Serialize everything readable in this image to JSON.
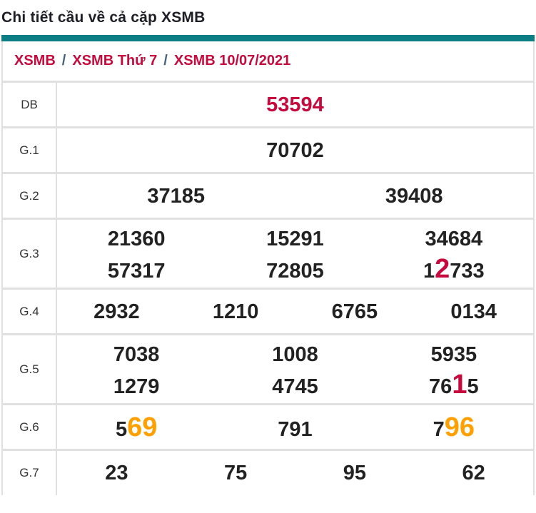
{
  "page": {
    "title": "Chi tiết cầu về cả cặp XSMB"
  },
  "breadcrumb": {
    "items": [
      "XSMB",
      "XSMB Thứ 7",
      "XSMB 10/07/2021"
    ],
    "separator": "/"
  },
  "colors": {
    "accent": "#0d7e84",
    "crimson": "#c70a3d",
    "orange": "#ffa000",
    "dark": "#222222",
    "border": "#e0e0e0",
    "breadcrumb_separator": "#44627e"
  },
  "table": {
    "rows": [
      {
        "label": "DB",
        "lines": [
          [
            {
              "segments": [
                {
                  "text": "53594",
                  "style": "red"
                }
              ]
            }
          ]
        ]
      },
      {
        "label": "G.1",
        "lines": [
          [
            {
              "segments": [
                {
                  "text": "70702"
                }
              ]
            }
          ]
        ]
      },
      {
        "label": "G.2",
        "lines": [
          [
            {
              "segments": [
                {
                  "text": "37185"
                }
              ]
            },
            {
              "segments": [
                {
                  "text": "39408"
                }
              ]
            }
          ]
        ]
      },
      {
        "label": "G.3",
        "lines": [
          [
            {
              "segments": [
                {
                  "text": "21360"
                }
              ]
            },
            {
              "segments": [
                {
                  "text": "15291"
                }
              ]
            },
            {
              "segments": [
                {
                  "text": "34684"
                }
              ]
            }
          ],
          [
            {
              "segments": [
                {
                  "text": "57317"
                }
              ]
            },
            {
              "segments": [
                {
                  "text": "72805"
                }
              ]
            },
            {
              "segments": [
                {
                  "text": "1"
                },
                {
                  "text": "2",
                  "style": "red-big"
                },
                {
                  "text": "733"
                }
              ]
            }
          ]
        ]
      },
      {
        "label": "G.4",
        "lines": [
          [
            {
              "segments": [
                {
                  "text": "2932"
                }
              ]
            },
            {
              "segments": [
                {
                  "text": "1210"
                }
              ]
            },
            {
              "segments": [
                {
                  "text": "6765"
                }
              ]
            },
            {
              "segments": [
                {
                  "text": "0134"
                }
              ]
            }
          ]
        ]
      },
      {
        "label": "G.5",
        "lines": [
          [
            {
              "segments": [
                {
                  "text": "7038"
                }
              ]
            },
            {
              "segments": [
                {
                  "text": "1008"
                }
              ]
            },
            {
              "segments": [
                {
                  "text": "5935"
                }
              ]
            }
          ],
          [
            {
              "segments": [
                {
                  "text": "1279"
                }
              ]
            },
            {
              "segments": [
                {
                  "text": "4745"
                }
              ]
            },
            {
              "segments": [
                {
                  "text": "76"
                },
                {
                  "text": "1",
                  "style": "red-big"
                },
                {
                  "text": "5"
                }
              ]
            }
          ]
        ]
      },
      {
        "label": "G.6",
        "lines": [
          [
            {
              "segments": [
                {
                  "text": "5"
                },
                {
                  "text": "69",
                  "style": "orange-big"
                }
              ]
            },
            {
              "segments": [
                {
                  "text": "791"
                }
              ]
            },
            {
              "segments": [
                {
                  "text": "7"
                },
                {
                  "text": "96",
                  "style": "orange-big"
                }
              ]
            }
          ]
        ]
      },
      {
        "label": "G.7",
        "lines": [
          [
            {
              "segments": [
                {
                  "text": "23"
                }
              ]
            },
            {
              "segments": [
                {
                  "text": "75"
                }
              ]
            },
            {
              "segments": [
                {
                  "text": "95"
                }
              ]
            },
            {
              "segments": [
                {
                  "text": "62"
                }
              ]
            }
          ]
        ]
      }
    ]
  }
}
